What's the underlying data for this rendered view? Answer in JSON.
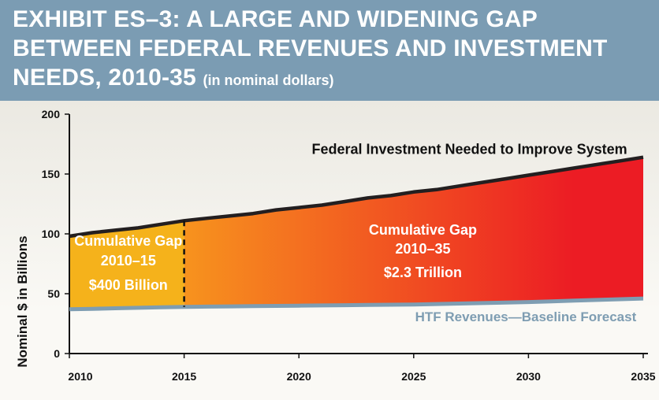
{
  "header": {
    "title_line1": "EXHIBIT ES–3: A LARGE AND WIDENING GAP",
    "title_line2": "BETWEEN FEDERAL REVENUES AND INVESTMENT",
    "title_line3": "NEEDS, 2010-35",
    "subtitle": "(in nominal dollars)"
  },
  "colors": {
    "header_bg": "#7b9cb3",
    "gap_early": "#f5b21b",
    "gap_late_start": "#f7931e",
    "gap_late_end": "#ec1c24",
    "investment_line": "#231f20",
    "revenue_line": "#7e9db2"
  },
  "chart_data": {
    "type": "area",
    "ylabel": "Nominal $ in Billions",
    "xlabel": "",
    "ylim": [
      0,
      200
    ],
    "xlim": [
      2010,
      2035
    ],
    "x_ticks": [
      2010,
      2015,
      2020,
      2025,
      2030,
      2035
    ],
    "y_ticks": [
      0,
      50,
      100,
      150,
      200
    ],
    "series": [
      {
        "name": "Federal Investment Needed to Improve System",
        "x": [
          2010,
          2011,
          2012,
          2013,
          2014,
          2015,
          2016,
          2017,
          2018,
          2019,
          2020,
          2021,
          2022,
          2023,
          2024,
          2025,
          2026,
          2027,
          2028,
          2029,
          2030,
          2031,
          2032,
          2033,
          2034,
          2035
        ],
        "values": [
          98,
          101,
          103,
          105,
          108,
          111,
          113,
          115,
          117,
          120,
          122,
          124,
          127,
          130,
          132,
          135,
          137,
          140,
          143,
          146,
          149,
          152,
          155,
          158,
          161,
          164
        ]
      },
      {
        "name": "HTF Revenues—Baseline Forecast",
        "x": [
          2010,
          2015,
          2020,
          2025,
          2030,
          2035
        ],
        "values": [
          37,
          39,
          40,
          41,
          43,
          46
        ]
      }
    ],
    "annotations": [
      {
        "text_line1": "Cumulative Gap",
        "text_line2": "2010–15",
        "text_line3": "$400 Billion"
      },
      {
        "text_line1": "Cumulative Gap",
        "text_line2": "2010–35",
        "text_line3": "$2.3 Trillion"
      }
    ],
    "divider_year": 2015
  }
}
